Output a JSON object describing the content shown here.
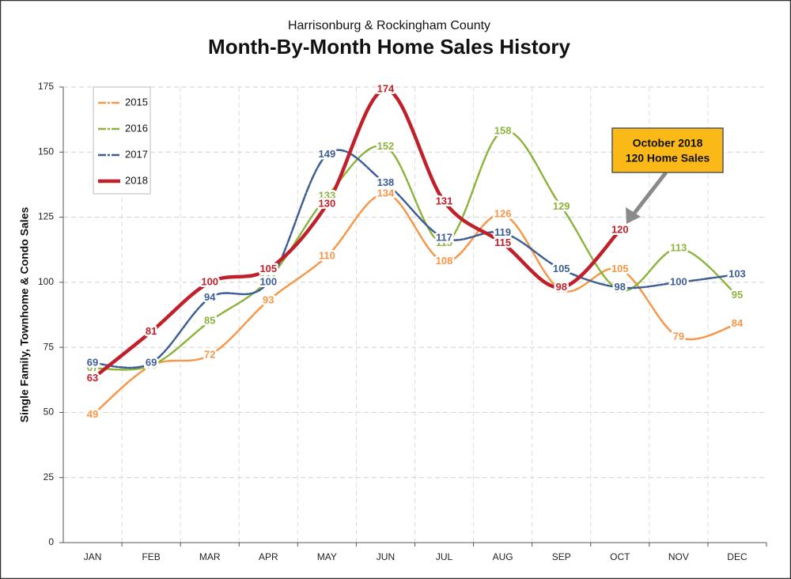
{
  "chart_data": {
    "type": "line",
    "subtitle": "Harrisonburg & Rockingham County",
    "title": "Month-By-Month Home Sales History",
    "y_label": "Single Family, Townhome & Condo Sales",
    "categories": [
      "JAN",
      "FEB",
      "MAR",
      "APR",
      "MAY",
      "JUN",
      "JUL",
      "AUG",
      "SEP",
      "OCT",
      "NOV",
      "DEC"
    ],
    "series": [
      {
        "name": "2015",
        "color": "#f79646",
        "values": [
          49,
          68,
          72,
          93,
          110,
          134,
          108,
          126,
          97,
          105,
          79,
          84
        ]
      },
      {
        "name": "2016",
        "color": "#8db33e",
        "values": [
          67,
          68,
          85,
          101,
          133,
          152,
          115,
          158,
          129,
          97,
          113,
          95
        ]
      },
      {
        "name": "2017",
        "color": "#3d5e94",
        "values": [
          69,
          69,
          94,
          100,
          149,
          138,
          117,
          119,
          105,
          98,
          100,
          103
        ]
      },
      {
        "name": "2018",
        "color": "#c0202a",
        "values": [
          63,
          81,
          100,
          105,
          130,
          174,
          131,
          115,
          98,
          120,
          null,
          null
        ]
      }
    ],
    "ylim": [
      0,
      175
    ],
    "yticks": [
      0,
      25,
      50,
      75,
      100,
      125,
      150,
      175
    ],
    "grid": true,
    "legend": "top-left",
    "annotation": [
      "October 2018",
      "120 Home Sales"
    ]
  }
}
